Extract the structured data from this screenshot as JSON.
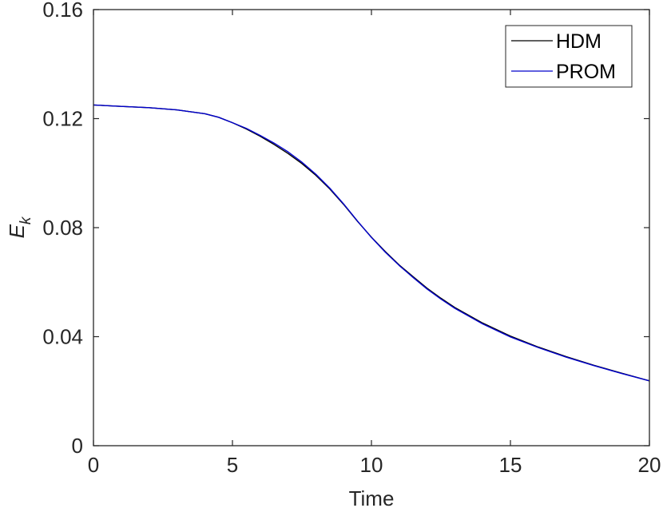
{
  "chart_data": {
    "type": "line",
    "xlabel": "Time",
    "ylabel": "E",
    "ylabel_subscript": "k",
    "xlim": [
      0,
      20
    ],
    "ylim": [
      0,
      0.16
    ],
    "xticks": [
      0,
      5,
      10,
      15,
      20
    ],
    "xtick_labels": [
      "0",
      "5",
      "10",
      "15",
      "20"
    ],
    "yticks": [
      0,
      0.04,
      0.08,
      0.12,
      0.16
    ],
    "ytick_labels": [
      "0",
      "0.04",
      "0.08",
      "0.12",
      "0.16"
    ],
    "grid": false,
    "legend_position": "top-right",
    "series": [
      {
        "name": "HDM",
        "color": "#000000",
        "x": [
          0,
          1,
          2,
          3,
          4,
          4.5,
          5,
          5.5,
          6,
          6.5,
          7,
          7.5,
          8,
          8.5,
          9,
          9.5,
          10,
          10.5,
          11,
          11.5,
          12,
          12.5,
          13,
          14,
          15,
          16,
          17,
          18,
          19,
          20
        ],
        "y": [
          0.125,
          0.1245,
          0.124,
          0.1232,
          0.1218,
          0.1205,
          0.1185,
          0.1162,
          0.1135,
          0.1105,
          0.1072,
          0.1035,
          0.0992,
          0.0942,
          0.0885,
          0.0823,
          0.0765,
          0.0712,
          0.0663,
          0.062,
          0.0578,
          0.0541,
          0.0507,
          0.045,
          0.0402,
          0.0362,
          0.0327,
          0.0295,
          0.0266,
          0.0238
        ]
      },
      {
        "name": "PROM",
        "color": "#0000cc",
        "x": [
          0,
          1,
          2,
          3,
          4,
          4.5,
          5,
          5.5,
          6,
          6.5,
          7,
          7.5,
          8,
          8.5,
          9,
          9.5,
          10,
          10.5,
          11,
          11.5,
          12,
          12.5,
          13,
          14,
          15,
          16,
          17,
          18,
          19,
          20
        ],
        "y": [
          0.125,
          0.1245,
          0.124,
          0.1232,
          0.1218,
          0.1205,
          0.1185,
          0.1164,
          0.1138,
          0.111,
          0.1078,
          0.104,
          0.0996,
          0.0945,
          0.0887,
          0.0824,
          0.0764,
          0.071,
          0.0661,
          0.0617,
          0.0575,
          0.0538,
          0.0504,
          0.0447,
          0.0399,
          0.036,
          0.0325,
          0.0294,
          0.0265,
          0.0238
        ]
      }
    ]
  }
}
